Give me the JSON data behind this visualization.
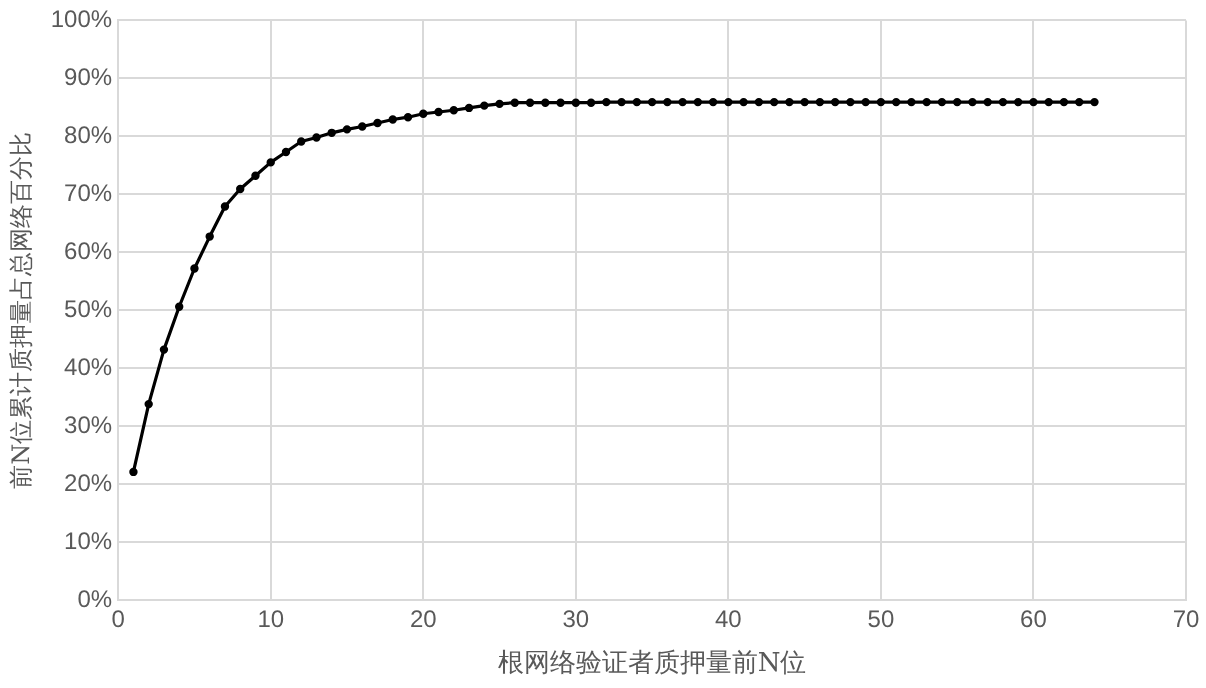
{
  "chart_data": {
    "type": "line",
    "xlabel": "根网络验证者质押量前N位",
    "ylabel": "前N位累计质押量占总网络百分比",
    "x": [
      1,
      2,
      3,
      4,
      5,
      6,
      7,
      8,
      9,
      10,
      11,
      12,
      13,
      14,
      15,
      16,
      17,
      18,
      19,
      20,
      21,
      22,
      23,
      24,
      25,
      26,
      27,
      28,
      29,
      30,
      31,
      32,
      33,
      34,
      35,
      36,
      37,
      38,
      39,
      40,
      41,
      42,
      43,
      44,
      45,
      46,
      47,
      48,
      49,
      50,
      51,
      52,
      53,
      54,
      55,
      56,
      57,
      58,
      59,
      60,
      61,
      62,
      63,
      64
    ],
    "series": [
      {
        "color": "#000000",
        "values": [
          22.1,
          33.8,
          43.2,
          50.6,
          57.2,
          62.7,
          67.9,
          70.9,
          73.2,
          75.5,
          77.3,
          79.1,
          79.8,
          80.6,
          81.2,
          81.7,
          82.3,
          82.9,
          83.3,
          83.9,
          84.2,
          84.5,
          84.9,
          85.3,
          85.6,
          85.8,
          85.8,
          85.8,
          85.8,
          85.8,
          85.8,
          85.9,
          85.9,
          85.9,
          85.9,
          85.9,
          85.9,
          85.9,
          85.9,
          85.9,
          85.9,
          85.9,
          85.9,
          85.9,
          85.9,
          85.9,
          85.9,
          85.9,
          85.9,
          85.9,
          85.9,
          85.9,
          85.9,
          85.9,
          85.9,
          85.9,
          85.9,
          85.9,
          85.9,
          85.9,
          85.9,
          85.9,
          85.9,
          85.9
        ]
      }
    ],
    "xlim": [
      0,
      70
    ],
    "xticks": [
      0,
      10,
      20,
      30,
      40,
      50,
      60,
      70
    ],
    "ylim": [
      0,
      100
    ],
    "yticks": [
      {
        "value": 0,
        "label": "0%"
      },
      {
        "value": 10,
        "label": "10%"
      },
      {
        "value": 20,
        "label": "20%"
      },
      {
        "value": 30,
        "label": "30%"
      },
      {
        "value": 40,
        "label": "40%"
      },
      {
        "value": 50,
        "label": "50%"
      },
      {
        "value": 60,
        "label": "60%"
      },
      {
        "value": 70,
        "label": "70%"
      },
      {
        "value": 80,
        "label": "80%"
      },
      {
        "value": 90,
        "label": "90%"
      },
      {
        "value": 100,
        "label": "100%"
      }
    ],
    "grid": true,
    "legend": false,
    "marker": "circle",
    "line_style": "solid"
  }
}
